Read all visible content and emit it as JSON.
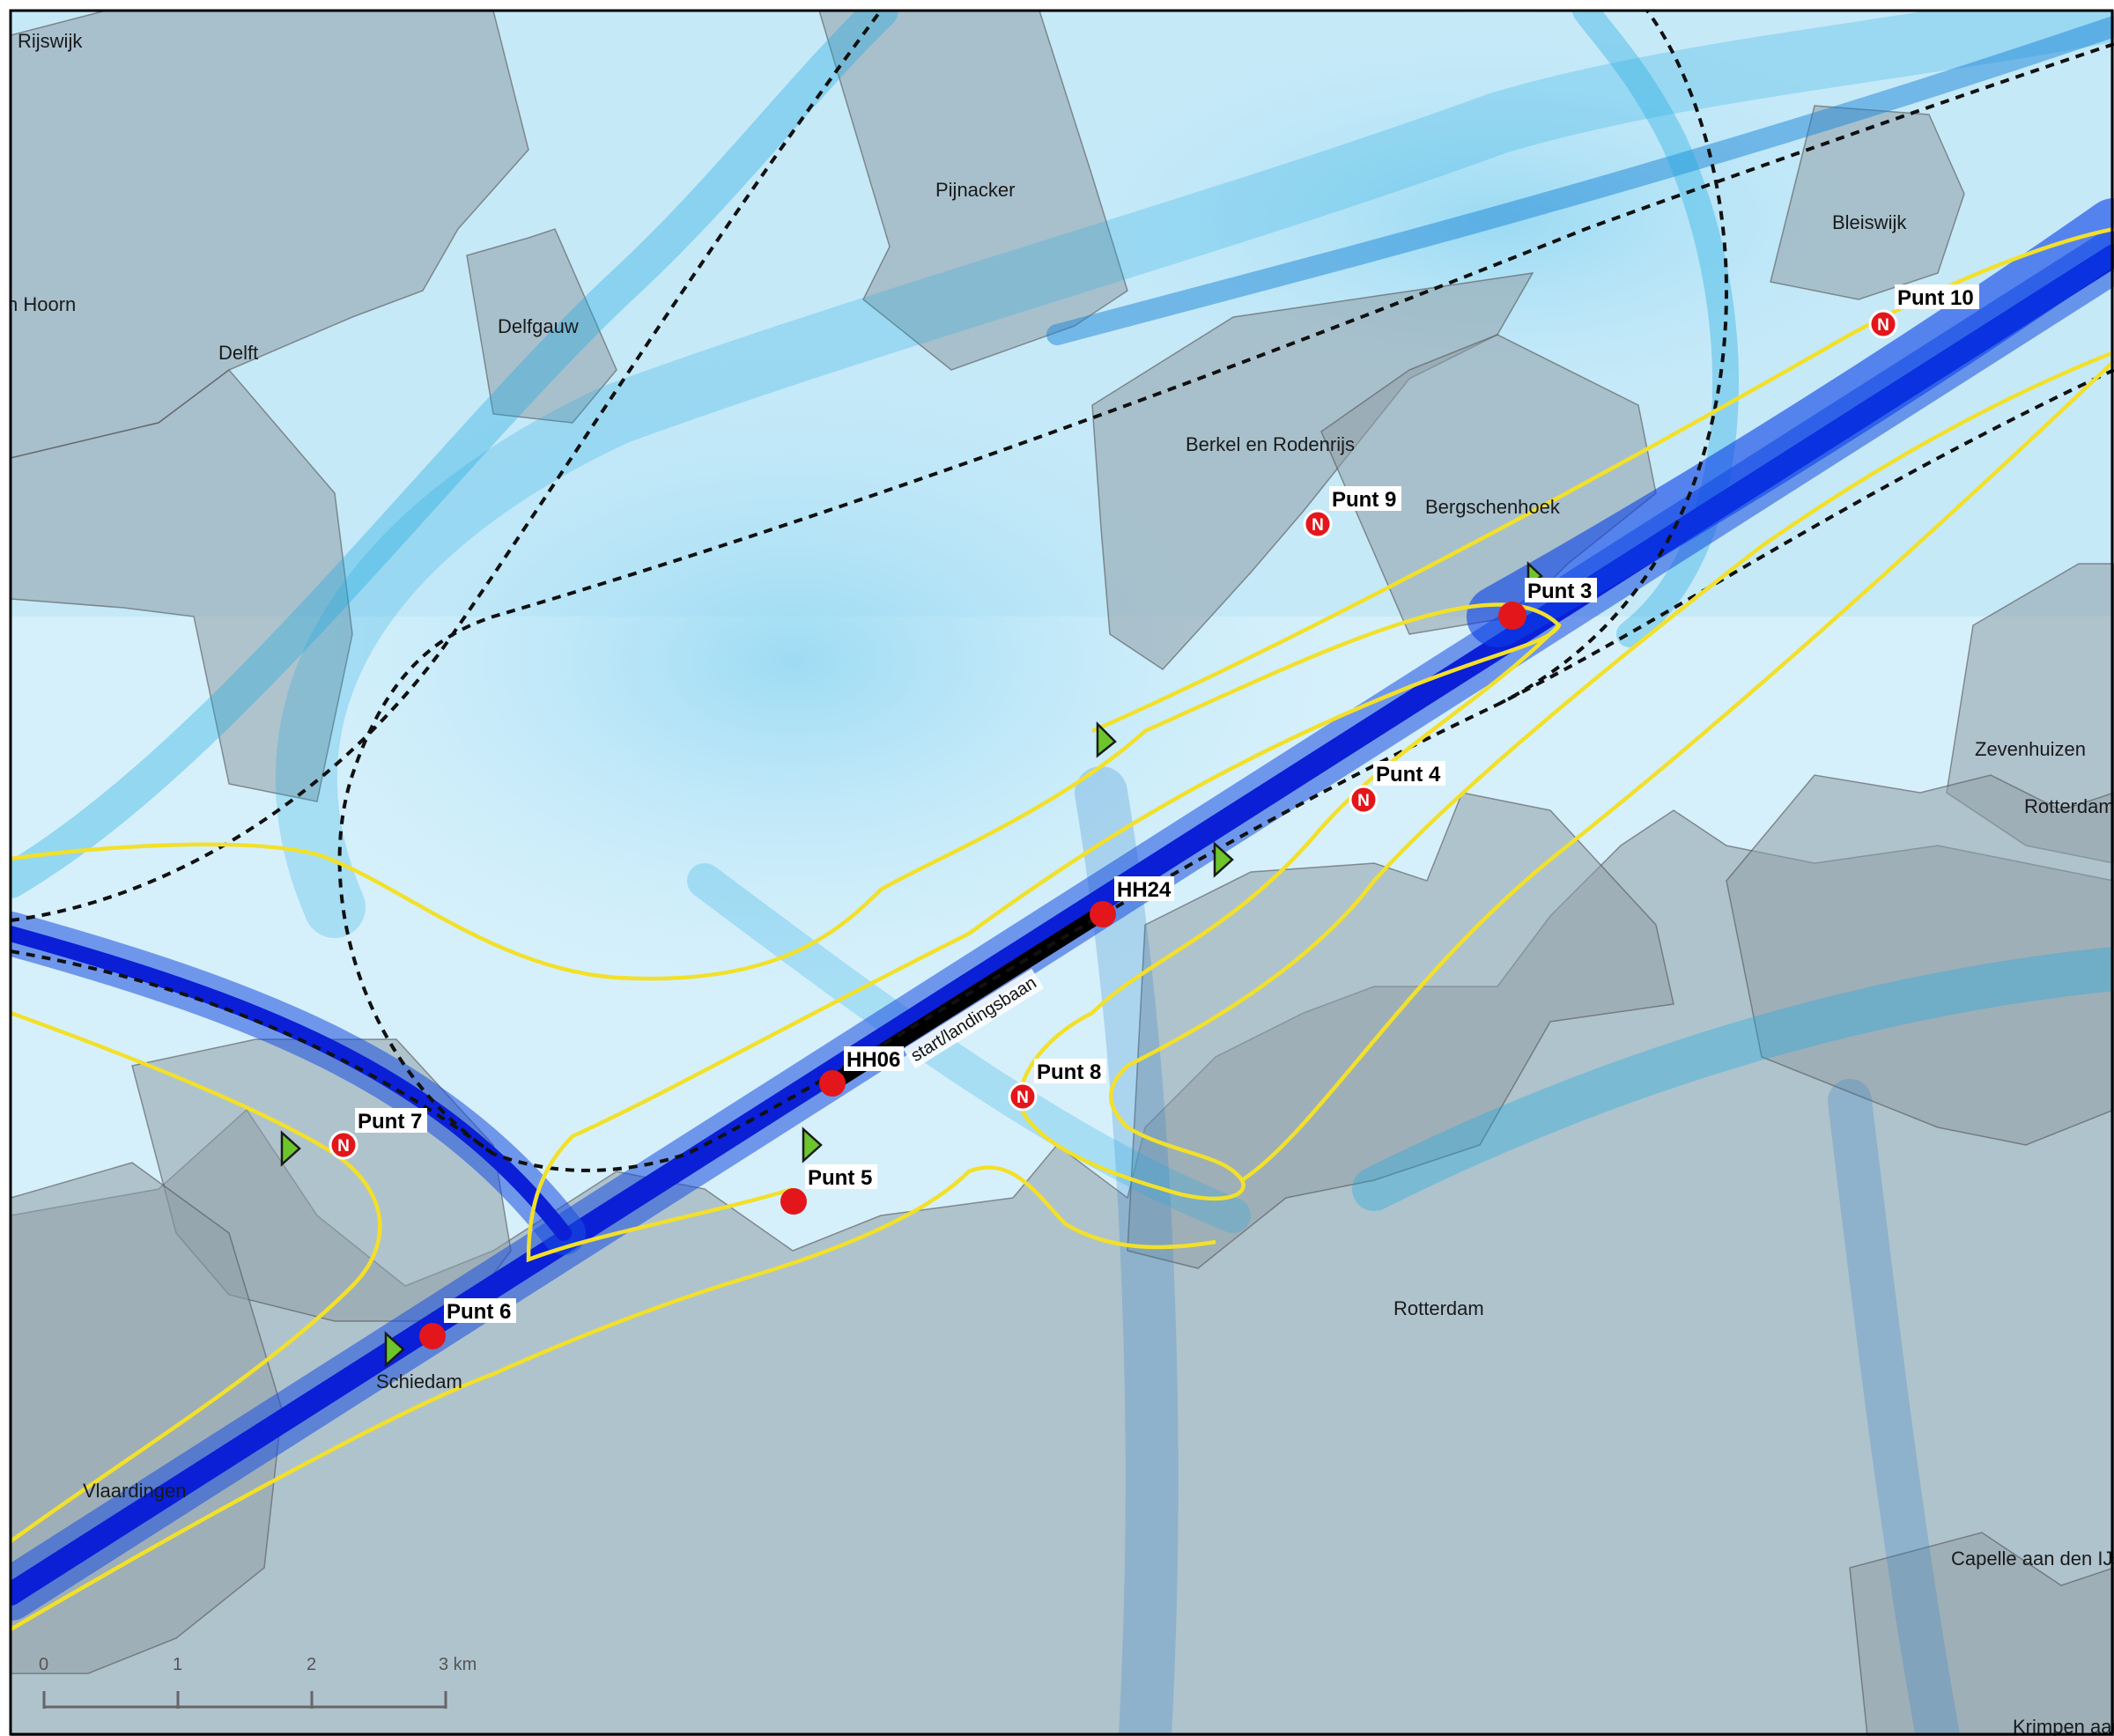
{
  "places": {
    "rijswijk": "Rijswijk",
    "hoorn": "n Hoorn",
    "delft": "Delft",
    "delfgauw": "Delfgauw",
    "pijnacker": "Pijnacker",
    "bleiswijk": "Bleiswijk",
    "berkel": "Berkel en Rodenrijs",
    "bergschenhoek": "Bergschenhoek",
    "zevenhuizen": "Zevenhuizen",
    "rotterdam_e": "Rotterdam",
    "rotterdam": "Rotterdam",
    "schiedam": "Schiedam",
    "vlaardingen": "Vlaardingen",
    "capelle": "Capelle aan den IJs",
    "krimpen": "Krimpen aan"
  },
  "points": {
    "punt3": "Punt 3",
    "punt4": "Punt 4",
    "punt5": "Punt 5",
    "punt6": "Punt 6",
    "punt7": "Punt 7",
    "punt8": "Punt 8",
    "punt9": "Punt 9",
    "punt10": "Punt 10",
    "hh06": "HH06",
    "hh24": "HH24",
    "n_symbol": "N"
  },
  "runway_label": "start/landingsbaan",
  "scalebar": {
    "ticks": [
      "0",
      "1",
      "2",
      "3 km"
    ]
  },
  "colors": {
    "track_light": "#1aa8e0",
    "track_dark": "#0a1fd6",
    "contour": "#f2e02a",
    "marker": "#e3161b",
    "arrow": "#6cc52a",
    "builtup": "#8a9aa6"
  }
}
